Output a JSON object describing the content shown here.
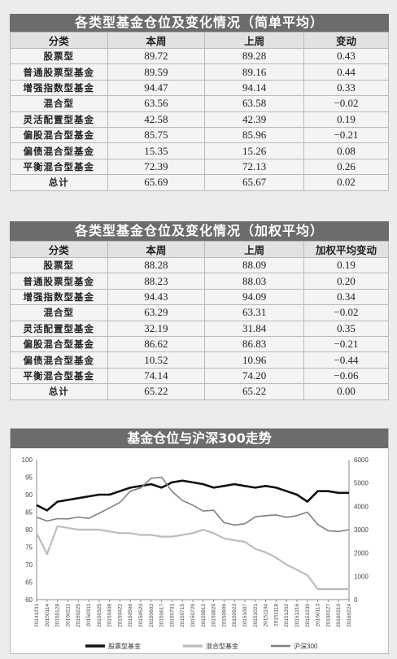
{
  "table1": {
    "title": "各类型基金仓位及变化情况（简单平均）",
    "headers": [
      "分类",
      "本周",
      "上周",
      "变动"
    ],
    "rows": [
      [
        "股票型",
        "89.72",
        "89.28",
        "0.43"
      ],
      [
        "普通股票型基金",
        "89.59",
        "89.16",
        "0.44"
      ],
      [
        "增强指数型基金",
        "94.47",
        "94.14",
        "0.33"
      ],
      [
        "混合型",
        "63.56",
        "63.58",
        "−0.02"
      ],
      [
        "灵活配置型基金",
        "42.58",
        "42.39",
        "0.19"
      ],
      [
        "偏股混合型基金",
        "85.75",
        "85.96",
        "−0.21"
      ],
      [
        "偏债混合型基金",
        "15.35",
        "15.26",
        "0.08"
      ],
      [
        "平衡混合型基金",
        "72.39",
        "72.13",
        "0.26"
      ],
      [
        "总计",
        "65.69",
        "65.67",
        "0.02"
      ]
    ]
  },
  "table2": {
    "title": "各类型基金仓位及变化情况（加权平均）",
    "headers": [
      "分类",
      "本周",
      "上周",
      "加权平均变动"
    ],
    "rows": [
      [
        "股票型",
        "88.28",
        "88.09",
        "0.19"
      ],
      [
        "普通股票型基金",
        "88.23",
        "88.03",
        "0.20"
      ],
      [
        "增强指数型基金",
        "94.43",
        "94.09",
        "0.34"
      ],
      [
        "混合型",
        "63.29",
        "63.31",
        "−0.02"
      ],
      [
        "灵活配置型基金",
        "32.19",
        "31.84",
        "0.35"
      ],
      [
        "偏股混合型基金",
        "86.62",
        "86.83",
        "−0.21"
      ],
      [
        "偏债混合型基金",
        "10.52",
        "10.96",
        "−0.44"
      ],
      [
        "平衡混合型基金",
        "74.14",
        "74.20",
        "−0.06"
      ],
      [
        "总计",
        "65.22",
        "65.22",
        "0.00"
      ]
    ]
  },
  "chart_title": "基金仓位与沪深300走势",
  "chart_data": {
    "type": "line",
    "title": "基金仓位与沪深300走势",
    "y_left": {
      "ticks": [
        60,
        65,
        70,
        75,
        80,
        85,
        90,
        95,
        100
      ],
      "lim": [
        60,
        100
      ]
    },
    "y_right": {
      "ticks": [
        0,
        1000,
        2000,
        3000,
        4000,
        5000,
        6000
      ],
      "lim": [
        0,
        6000
      ]
    },
    "x_ticks": [
      "20141231",
      "20150114",
      "20150128",
      "20150211",
      "20150225",
      "20150311",
      "20150325",
      "20150408",
      "20150422",
      "20150506",
      "20150520",
      "20150603",
      "20150617",
      "20150701",
      "20150715",
      "20150729",
      "20150812",
      "20150826",
      "20150909",
      "20150923",
      "20151007",
      "20151021",
      "20151104",
      "20151118",
      "20151202",
      "20151216",
      "20151230",
      "20160113",
      "20160127",
      "20160210",
      "20160224"
    ],
    "series": [
      {
        "name": "股票型基金",
        "axis": "left",
        "color": "#111111",
        "width": 2.6,
        "values": [
          87,
          85.5,
          88,
          88.5,
          89,
          89.5,
          90,
          90,
          91,
          92,
          92.5,
          93,
          92,
          93.5,
          94,
          93.5,
          93,
          92,
          92.5,
          93,
          92.5,
          92,
          92.5,
          92,
          91,
          90,
          88,
          91,
          91,
          90.5,
          90.5
        ]
      },
      {
        "name": "混合型基金",
        "axis": "left",
        "color": "#bcbcbc",
        "width": 2.2,
        "values": [
          79,
          73,
          81,
          80.5,
          80,
          80,
          80,
          79.5,
          79,
          79,
          78.5,
          78.5,
          78,
          78,
          78.5,
          79,
          80,
          79,
          77.5,
          77,
          76.5,
          74.5,
          73.5,
          72,
          70,
          68.5,
          67,
          63,
          63,
          63,
          63
        ]
      },
      {
        "name": "沪深300",
        "axis": "right",
        "color": "#808080",
        "width": 1.6,
        "values": [
          3530,
          3370,
          3470,
          3460,
          3540,
          3480,
          3700,
          3930,
          4170,
          4650,
          4790,
          5200,
          5250,
          4640,
          4250,
          4050,
          3800,
          3830,
          3300,
          3200,
          3250,
          3550,
          3600,
          3630,
          3530,
          3600,
          3750,
          3220,
          2950,
          2920,
          3000
        ]
      }
    ],
    "legend": "bottom"
  }
}
